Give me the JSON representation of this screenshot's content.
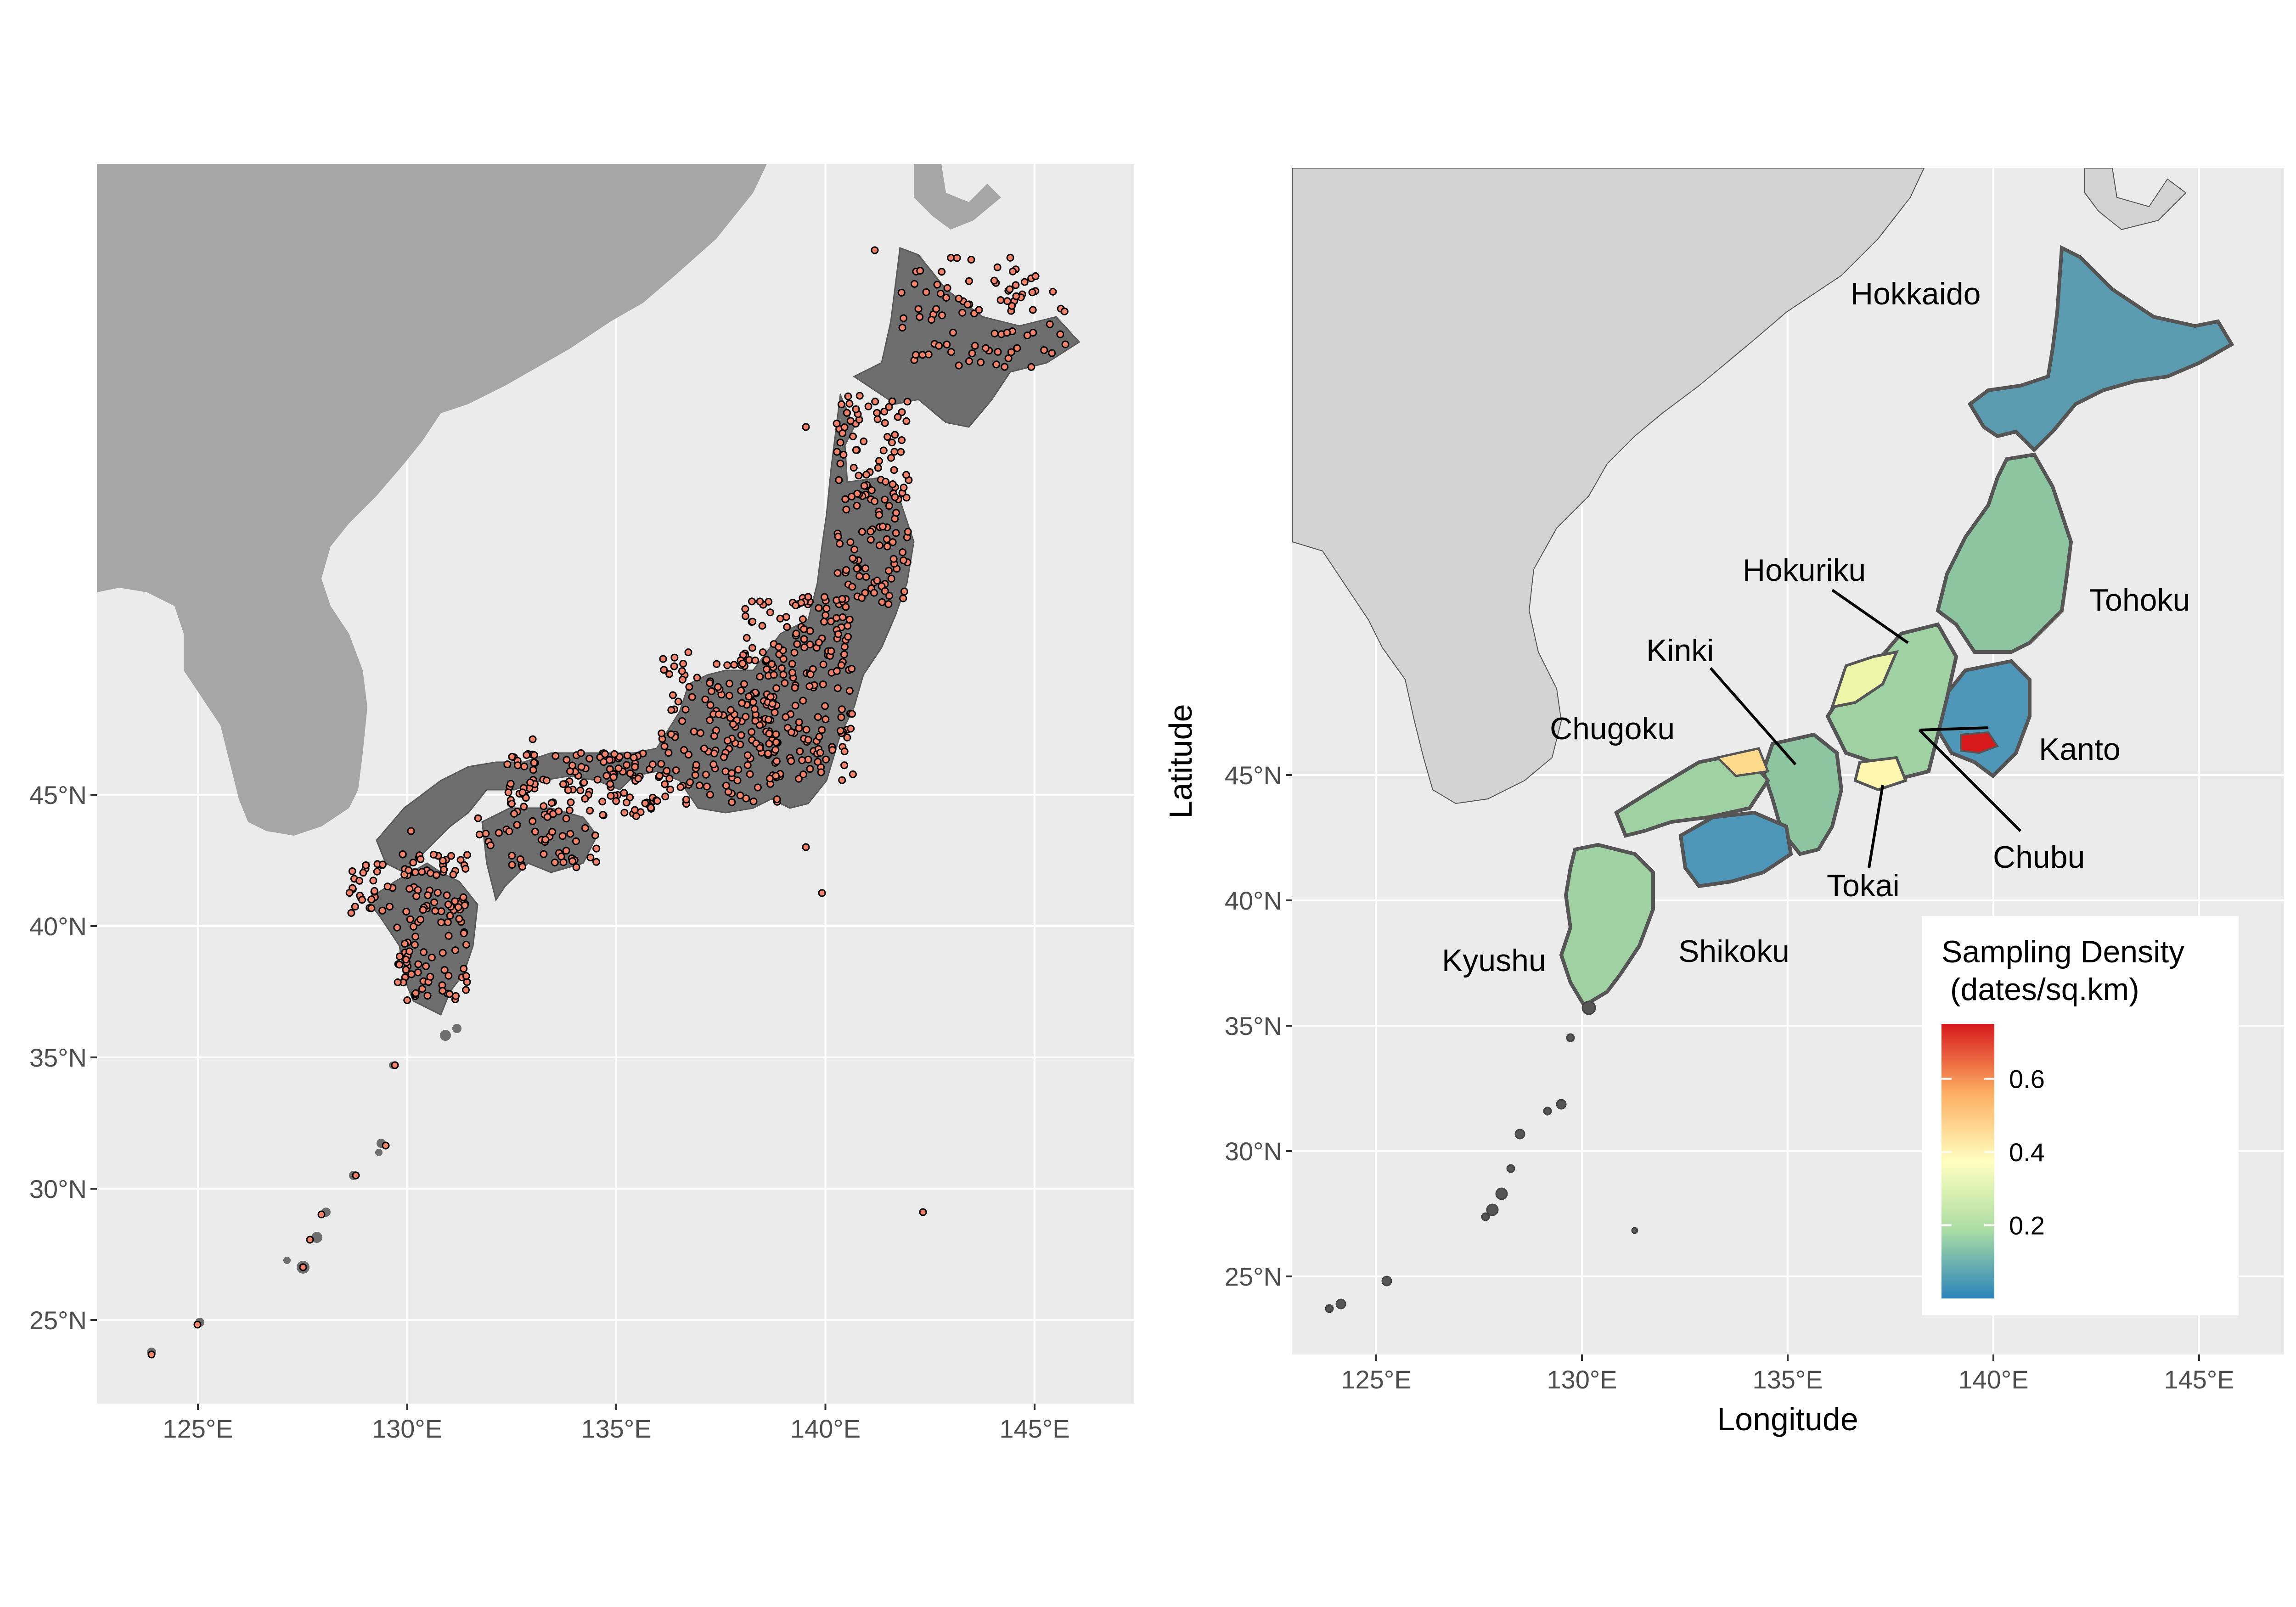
{
  "panels": [
    {
      "id": "left",
      "x_ticks": [
        "125°E",
        "130°E",
        "135°E",
        "140°E",
        "145°E"
      ],
      "y_ticks": [
        "25°N",
        "30°N",
        "35°N",
        "40°N",
        "45°N"
      ],
      "layers": [
        "background land",
        "shaded relief",
        "sampling locations"
      ]
    },
    {
      "id": "right",
      "x_ticks": [
        "125°E",
        "130°E",
        "135°E",
        "140°E",
        "145°E"
      ],
      "y_ticks": [
        "25°N",
        "30°N",
        "35°N",
        "40°N",
        "45°N"
      ],
      "xlabel": "Longitude",
      "ylabel": "Latitude",
      "regions": [
        "Hokkaido",
        "Tohoku",
        "Hokuriku",
        "Kinki",
        "Chugoku",
        "Kanto",
        "Chubu",
        "Tokai",
        "Kyushu",
        "Shikoku"
      ],
      "legend": {
        "title_line1": "Sampling Density",
        "title_line2": " (dates/sq.km)",
        "ticks": [
          "0.6",
          "0.4",
          "0.2"
        ],
        "tick_values": [
          0.6,
          0.4,
          0.2
        ],
        "range": [
          0.0,
          0.75
        ],
        "palette": [
          "#2b83ba",
          "#abdda4",
          "#ffffbf",
          "#fdae61",
          "#d7191c"
        ]
      }
    }
  ],
  "map_extent": {
    "lon": [
      123,
      147
    ],
    "lat": [
      23.5,
      47
    ]
  },
  "colors": {
    "panel_bg": "#ebebeb",
    "grid": "#ffffff",
    "land_left": "#a6a6a6",
    "relief": "#6e6e6e",
    "point_fill": "#f4826a",
    "point_stroke": "#000000",
    "land_right": "#d3d3d3",
    "border_right": "#555555"
  }
}
